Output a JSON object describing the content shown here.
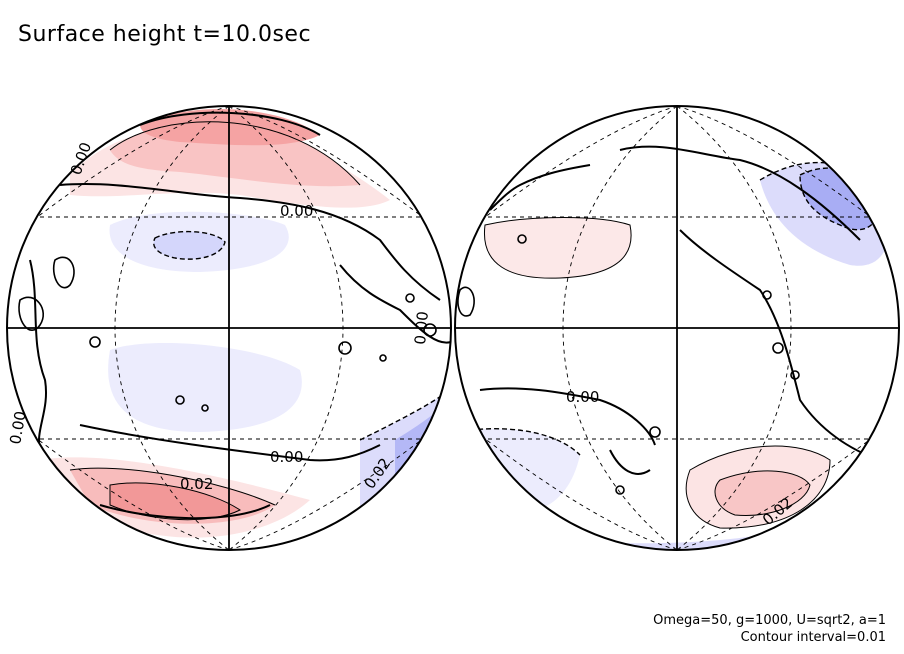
{
  "title": "Surface height t=10.0sec",
  "params": {
    "line1": "Omega=50, g=1000, U=sqrt2, a=1",
    "line2": "Contour interval=0.01"
  },
  "chart_data": {
    "type": "contour-map",
    "projection": "orthographic (two hemispheres)",
    "contour_interval": 0.01,
    "colors": {
      "positive": "#f4a0a0",
      "negative": "#9aa0f0",
      "zero_line": "#000000"
    },
    "contour_labels": [
      {
        "globe": "left",
        "text": "0.00"
      },
      {
        "globe": "left",
        "text": "0.00"
      },
      {
        "globe": "left",
        "text": "0.00"
      },
      {
        "globe": "left",
        "text": "0.00"
      },
      {
        "globe": "left",
        "text": "0.00"
      },
      {
        "globe": "left",
        "text": "0.02"
      },
      {
        "globe": "left",
        "text": "0.02"
      },
      {
        "globe": "right",
        "text": "0.00"
      },
      {
        "globe": "right",
        "text": "0.02"
      }
    ]
  }
}
